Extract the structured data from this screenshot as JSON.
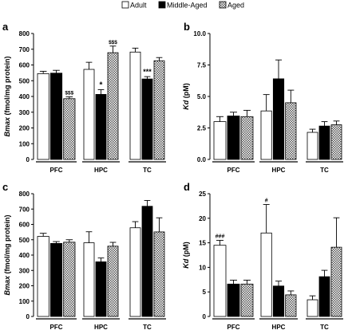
{
  "legend": {
    "items": [
      {
        "name": "Adult",
        "fill": "white"
      },
      {
        "name": "Middle-Aged",
        "fill": "black"
      },
      {
        "name": "Aged",
        "fill": "hatch"
      }
    ]
  },
  "colors": {
    "bar_stroke": "#000000",
    "black": "#000000",
    "white": "#ffffff",
    "hatch_dark": "#555555"
  },
  "chart_data": [
    {
      "panel": "a",
      "type": "bar",
      "ylabel": "Bmax (fmol/mg protein)",
      "ylim": [
        0,
        800
      ],
      "yticks": [
        "0",
        "100",
        "200",
        "300",
        "400",
        "500",
        "600",
        "700",
        "800"
      ],
      "categories": [
        "PFC",
        "HPC",
        "TC"
      ],
      "series": [
        {
          "name": "Adult",
          "values": [
            545,
            572,
            682
          ],
          "errors": [
            15,
            45,
            25
          ]
        },
        {
          "name": "Middle-Aged",
          "values": [
            548,
            413,
            511
          ],
          "errors": [
            18,
            30,
            15
          ]
        },
        {
          "name": "Aged",
          "values": [
            386,
            678,
            627
          ],
          "errors": [
            12,
            42,
            20
          ]
        }
      ],
      "annotations": [
        {
          "text": "$$$",
          "category": 0,
          "series": 2
        },
        {
          "text": "*",
          "category": 1,
          "series": 1
        },
        {
          "text": "$$$",
          "category": 1,
          "series": 2
        },
        {
          "text": "***",
          "category": 2,
          "series": 1
        }
      ]
    },
    {
      "panel": "b",
      "type": "bar",
      "ylabel": "Kd (pM)",
      "ylim": [
        0,
        10
      ],
      "yticks": [
        "0.0",
        "2.5",
        "5.0",
        "7.5",
        "10.0"
      ],
      "categories": [
        "PFC",
        "HPC",
        "TC"
      ],
      "series": [
        {
          "name": "Adult",
          "values": [
            3.0,
            3.85,
            2.15
          ],
          "errors": [
            0.4,
            1.3,
            0.25
          ]
        },
        {
          "name": "Middle-Aged",
          "values": [
            3.45,
            6.4,
            2.65
          ],
          "errors": [
            0.3,
            1.5,
            0.35
          ]
        },
        {
          "name": "Aged",
          "values": [
            3.4,
            4.5,
            2.75
          ],
          "errors": [
            0.5,
            1.0,
            0.3
          ]
        }
      ],
      "annotations": []
    },
    {
      "panel": "c",
      "type": "bar",
      "ylabel": "Bmax (fmol/mg protein)",
      "ylim": [
        0,
        800
      ],
      "yticks": [
        "0",
        "100",
        "200",
        "300",
        "400",
        "500",
        "600",
        "700",
        "800"
      ],
      "categories": [
        "PFC",
        "HPC",
        "TC"
      ],
      "series": [
        {
          "name": "Adult",
          "values": [
            522,
            480,
            578
          ],
          "errors": [
            20,
            72,
            40
          ]
        },
        {
          "name": "Middle-Aged",
          "values": [
            476,
            356,
            718
          ],
          "errors": [
            12,
            25,
            38
          ]
        },
        {
          "name": "Aged",
          "values": [
            484,
            458,
            551
          ],
          "errors": [
            16,
            25,
            92
          ]
        }
      ],
      "annotations": []
    },
    {
      "panel": "d",
      "type": "bar",
      "ylabel": "Kd (pM)",
      "ylim": [
        0,
        25
      ],
      "yticks": [
        "0",
        "5",
        "10",
        "15",
        "20",
        "25"
      ],
      "categories": [
        "PFC",
        "HPC",
        "TC"
      ],
      "series": [
        {
          "name": "Adult",
          "values": [
            14.5,
            17.0,
            3.4
          ],
          "errors": [
            1.0,
            5.8,
            0.8
          ]
        },
        {
          "name": "Middle-Aged",
          "values": [
            6.6,
            6.2,
            8.1
          ],
          "errors": [
            0.8,
            1.0,
            1.3
          ]
        },
        {
          "name": "Aged",
          "values": [
            6.6,
            4.4,
            14.1
          ],
          "errors": [
            0.8,
            0.8,
            6.0
          ]
        }
      ],
      "annotations": [
        {
          "text": "###",
          "category": 0,
          "series": 0
        },
        {
          "text": "#",
          "category": 1,
          "series": 0
        }
      ]
    }
  ]
}
